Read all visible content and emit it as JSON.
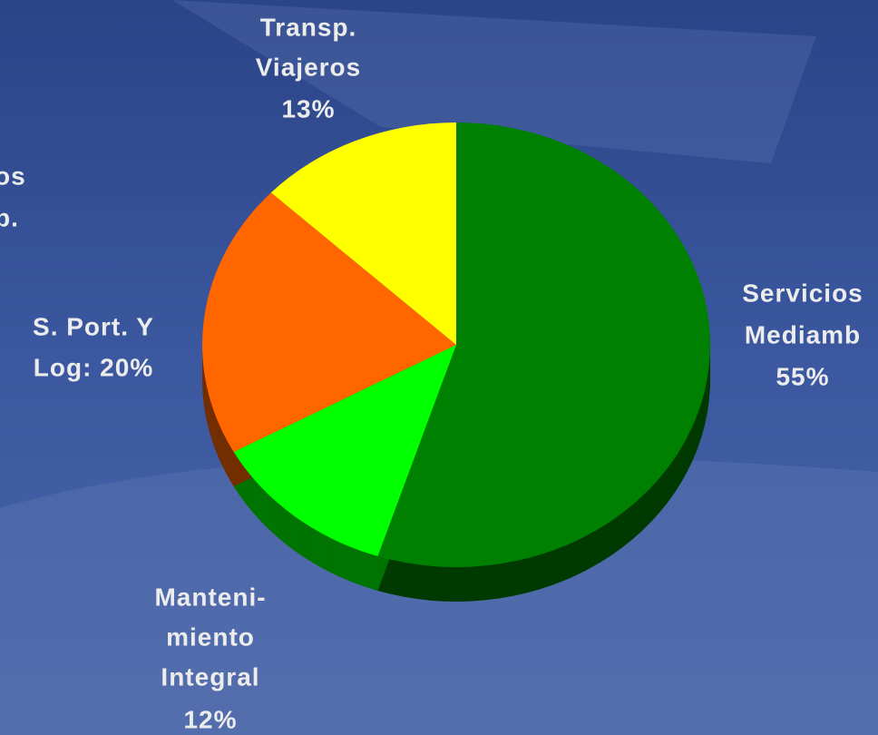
{
  "chart_data": {
    "type": "pie",
    "categories": [
      [
        "Servicios",
        "Mediamb"
      ],
      [
        "Manteni-",
        "miento",
        "Integral"
      ],
      [
        "S. Port. Y"
      ],
      [
        "Transp.",
        "Viajeros"
      ]
    ],
    "values": [
      55,
      12,
      20,
      13
    ],
    "value_labels": [
      "55%",
      "12%",
      "Log: 20%",
      "13%"
    ],
    "colors": [
      "#008000",
      "#00ff00",
      "#ff6600",
      "#ffff00"
    ],
    "background_text": [
      "os",
      "b."
    ]
  }
}
